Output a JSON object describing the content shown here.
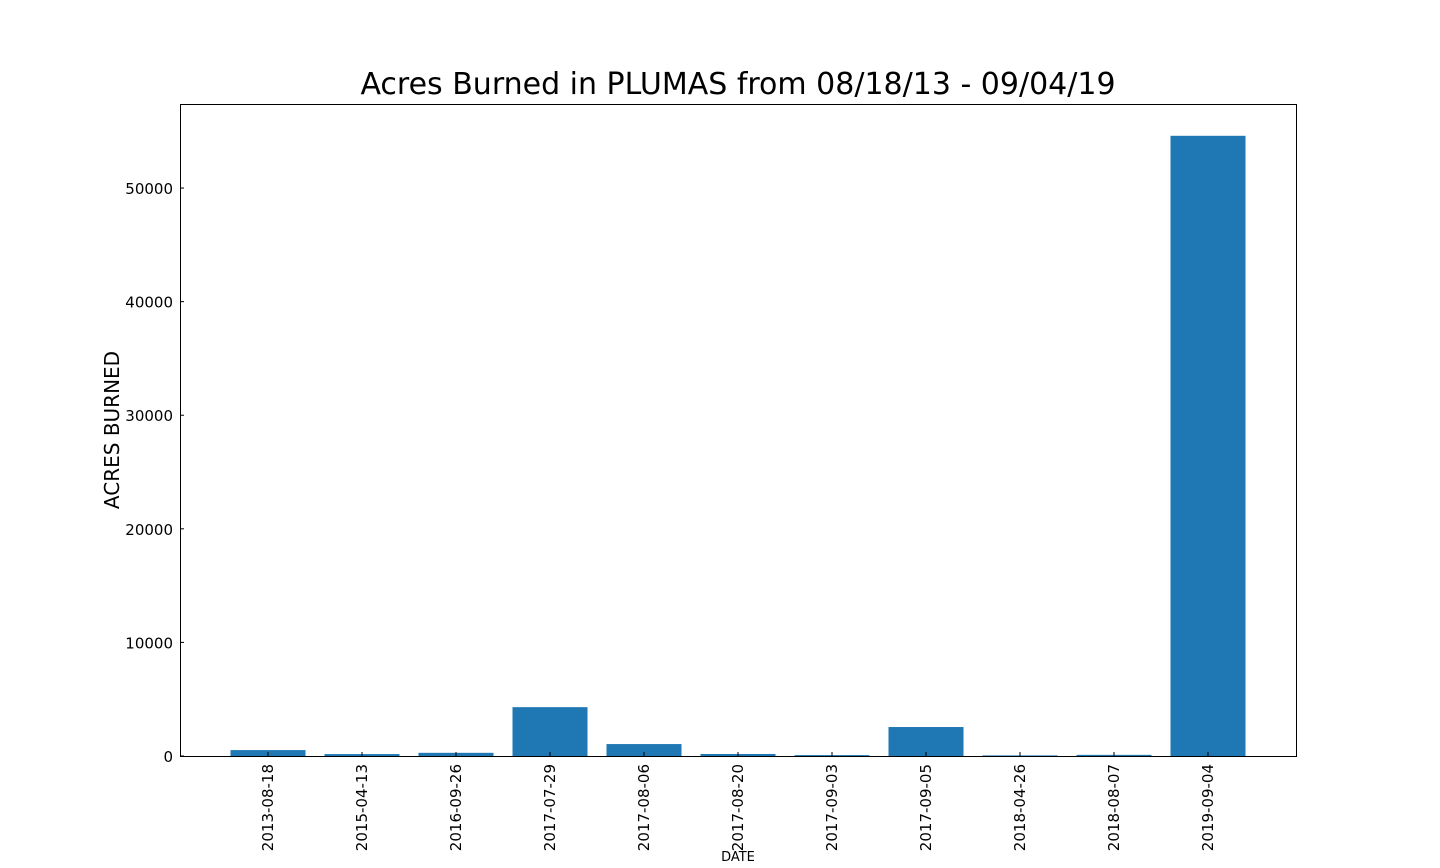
{
  "chart_data": {
    "type": "bar",
    "title": "Acres Burned in PLUMAS from 08/18/13 - 09/04/19",
    "xlabel": "DATE",
    "ylabel": "ACRES BURNED",
    "categories": [
      "2013-08-18",
      "2015-04-13",
      "2016-09-26",
      "2017-07-29",
      "2017-08-06",
      "2017-08-20",
      "2017-09-03",
      "2017-09-05",
      "2018-04-26",
      "2018-08-07",
      "2019-09-04"
    ],
    "values": [
      520,
      170,
      280,
      4300,
      1050,
      180,
      80,
      2550,
      10,
      100,
      54600
    ],
    "ylim": [
      0,
      57400
    ],
    "yticks": [
      0,
      10000,
      20000,
      30000,
      40000,
      50000
    ],
    "bar_color": "#1f77b4",
    "grid": false,
    "legend": "none"
  }
}
